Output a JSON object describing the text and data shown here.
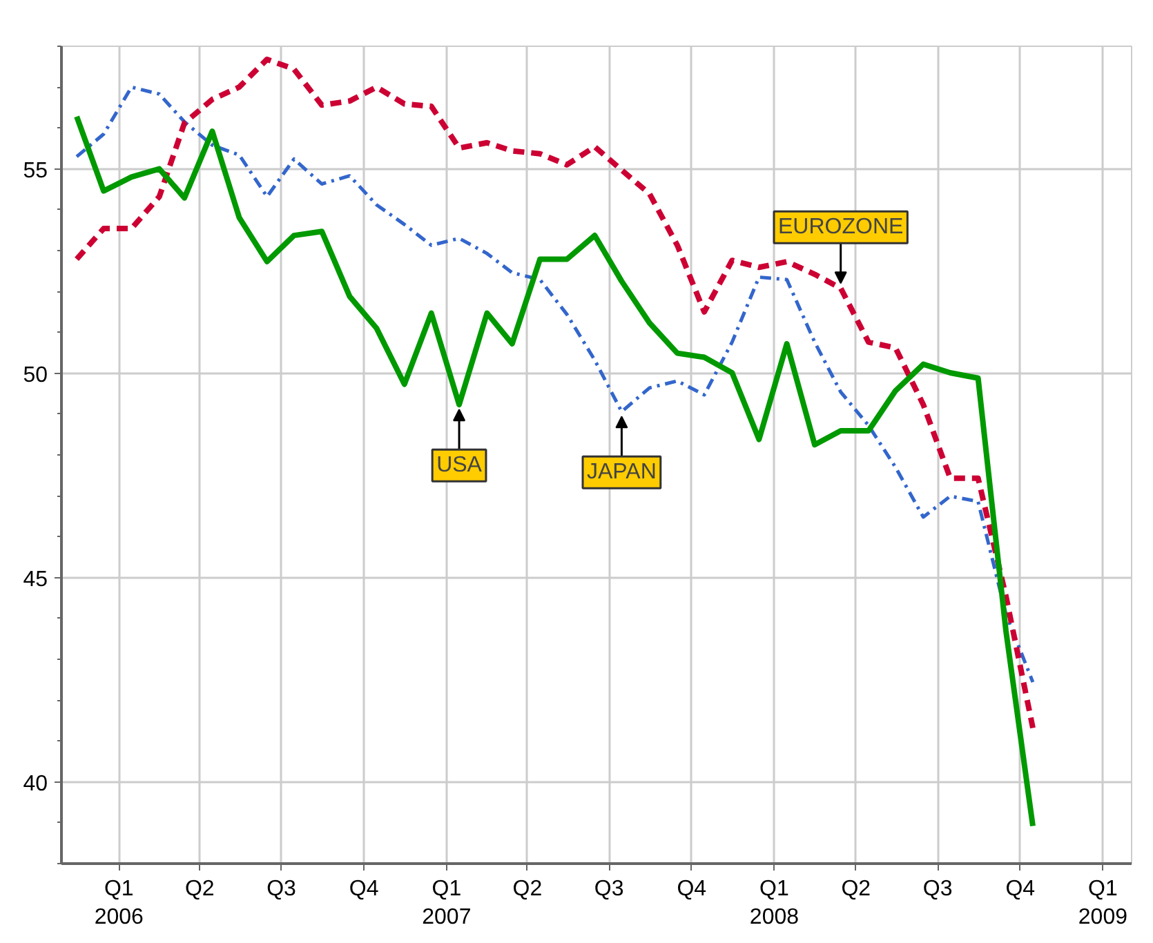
{
  "chart_data": {
    "type": "line",
    "x": [
      "2005-11-15",
      "2005-12-15",
      "2006-01-15",
      "2006-02-15",
      "2006-03-15",
      "2006-04-15",
      "2006-05-15",
      "2006-06-15",
      "2006-07-15",
      "2006-08-15",
      "2006-09-15",
      "2006-10-15",
      "2006-11-15",
      "2006-12-15",
      "2007-01-15",
      "2007-02-15",
      "2007-03-15",
      "2007-04-15",
      "2007-05-15",
      "2007-06-15",
      "2007-07-15",
      "2007-08-15",
      "2007-09-15",
      "2007-10-15",
      "2007-11-15",
      "2007-12-15",
      "2008-01-15",
      "2008-02-15",
      "2008-03-15",
      "2008-04-15",
      "2008-05-15",
      "2008-06-15",
      "2008-07-15",
      "2008-08-15",
      "2008-09-15",
      "2008-10-15"
    ],
    "series": [
      {
        "color": "#3366cc",
        "line_style": "dashdot",
        "values": [
          55.3,
          55.85,
          57.0,
          56.83,
          56.15,
          55.58,
          55.34,
          54.32,
          55.24,
          54.63,
          54.83,
          54.12,
          53.64,
          53.13,
          53.3,
          52.93,
          52.46,
          52.29,
          51.44,
          50.32,
          49.06,
          49.64,
          49.81,
          49.47,
          50.76,
          52.35,
          52.29,
          50.76,
          49.54,
          48.72,
          47.7,
          46.48,
          46.99,
          46.86,
          44.11,
          42.44
        ]
      },
      {
        "color": "#cc0033",
        "line_style": "dashed",
        "values": [
          52.79,
          53.54,
          53.54,
          54.32,
          56.12,
          56.7,
          57.0,
          57.68,
          57.44,
          56.56,
          56.66,
          57.0,
          56.59,
          56.53,
          55.51,
          55.64,
          55.44,
          55.37,
          55.1,
          55.54,
          54.97,
          54.39,
          53.13,
          51.5,
          52.76,
          52.59,
          52.73,
          52.42,
          52.08,
          50.76,
          50.62,
          49.23,
          47.43,
          47.43,
          44.55,
          41.32
        ]
      },
      {
        "color": "#009900",
        "line_style": "solid",
        "values": [
          56.28,
          54.46,
          54.8,
          55.0,
          54.29,
          55.92,
          53.81,
          52.73,
          53.37,
          53.47,
          51.88,
          51.1,
          49.73,
          51.47,
          49.23,
          51.47,
          50.72,
          52.79,
          52.79,
          53.37,
          52.25,
          51.23,
          50.49,
          50.39,
          50.01,
          48.38,
          50.72,
          48.25,
          48.59,
          48.59,
          49.57,
          50.22,
          50.01,
          49.88,
          43.7,
          38.92
        ]
      }
    ],
    "xlim": [
      "2005-10-29",
      "2009-02-02"
    ],
    "xticks": [
      {
        "value": "2006-01-01",
        "label": "Q1\n2006"
      },
      {
        "value": "2006-04-01",
        "label": "Q2"
      },
      {
        "value": "2006-07-01",
        "label": "Q3"
      },
      {
        "value": "2006-10-01",
        "label": "Q4"
      },
      {
        "value": "2007-01-01",
        "label": "Q1\n2007"
      },
      {
        "value": "2007-04-01",
        "label": "Q2"
      },
      {
        "value": "2007-07-01",
        "label": "Q3"
      },
      {
        "value": "2007-10-01",
        "label": "Q4"
      },
      {
        "value": "2008-01-01",
        "label": "Q1\n2008"
      },
      {
        "value": "2008-04-01",
        "label": "Q2"
      },
      {
        "value": "2008-07-01",
        "label": "Q3"
      },
      {
        "value": "2008-10-01",
        "label": "Q4"
      },
      {
        "value": "2009-01-01",
        "label": "Q1\n2009"
      }
    ],
    "ylim": [
      38,
      58
    ],
    "yticks": [
      40,
      45,
      50,
      55
    ],
    "grid": true,
    "marker": "none",
    "annotations": [
      {
        "text": "USA",
        "x": "2007-01-15",
        "y": 49.23
      },
      {
        "text": "JAPAN",
        "x": "2007-07-15",
        "y": 49.06
      },
      {
        "text": "EUROZONE",
        "x": "2008-03-15",
        "y": 52.08
      }
    ]
  }
}
